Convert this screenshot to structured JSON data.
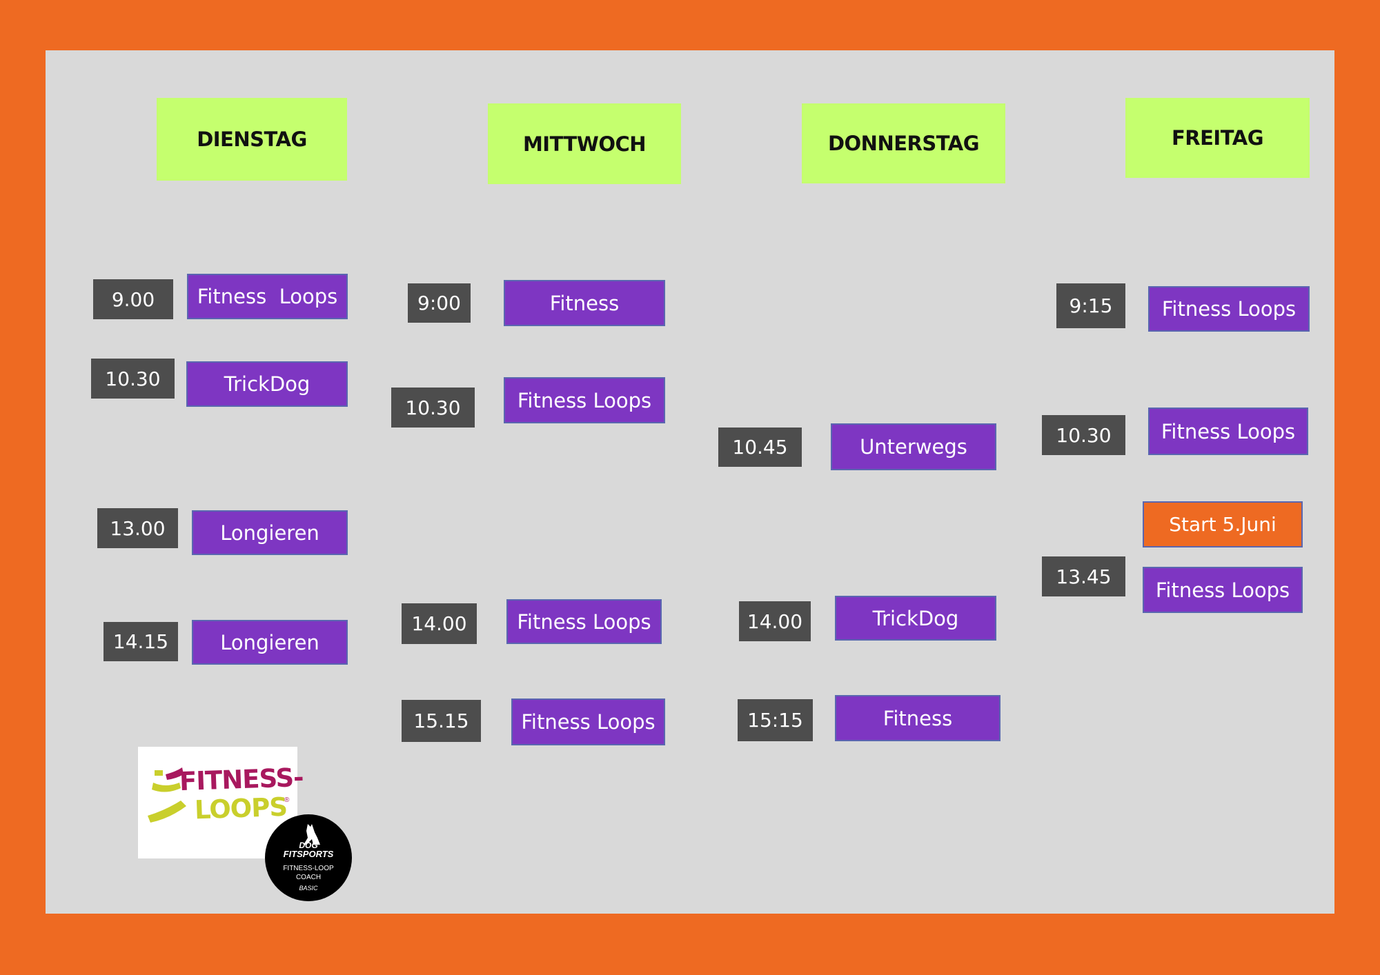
{
  "days": {
    "tuesday": "DIENSTAG",
    "wednesday": "MITTWOCH",
    "thursday": "DONNERSTAG",
    "friday": "FREITAG"
  },
  "tuesday": [
    {
      "time": "9.00",
      "class": "Fitness  Loops"
    },
    {
      "time": "10.30",
      "class": "TrickDog"
    },
    {
      "time": "13.00",
      "class": "Longieren"
    },
    {
      "time": "14.15",
      "class": "Longieren"
    }
  ],
  "wednesday": [
    {
      "time": "9:00",
      "class": "Fitness"
    },
    {
      "time": "10.30",
      "class": "Fitness Loops"
    },
    {
      "time": "14.00",
      "class": "Fitness Loops"
    },
    {
      "time": "15.15",
      "class": "Fitness Loops"
    }
  ],
  "thursday": [
    {
      "time": "10.45",
      "class": "Unterwegs"
    },
    {
      "time": "14.00",
      "class": "TrickDog"
    },
    {
      "time": "15:15",
      "class": "Fitness"
    }
  ],
  "friday": [
    {
      "time": "9:15",
      "class": "Fitness Loops"
    },
    {
      "time": "10.30",
      "class": "Fitness Loops"
    },
    {
      "time": "13.45",
      "class": "Fitness Loops",
      "note": "Start 5.Juni"
    }
  ],
  "logo": {
    "line1": "FITNESS-",
    "line2": "LOOPS"
  },
  "badge": {
    "brand_top": "DOG",
    "brand_bottom": "FITSPORTS",
    "line1": "FITNESS-LOOP",
    "line2": "COACH",
    "line3": "BASIC"
  },
  "colors": {
    "frame": "#ee6a22",
    "board": "#d9d9d9",
    "day_header": "#c5ff6e",
    "time_box": "#4d4d4d",
    "class_box": "#7e36c2",
    "logo_magenta": "#a8185e",
    "logo_yellow": "#c9cf2c"
  }
}
